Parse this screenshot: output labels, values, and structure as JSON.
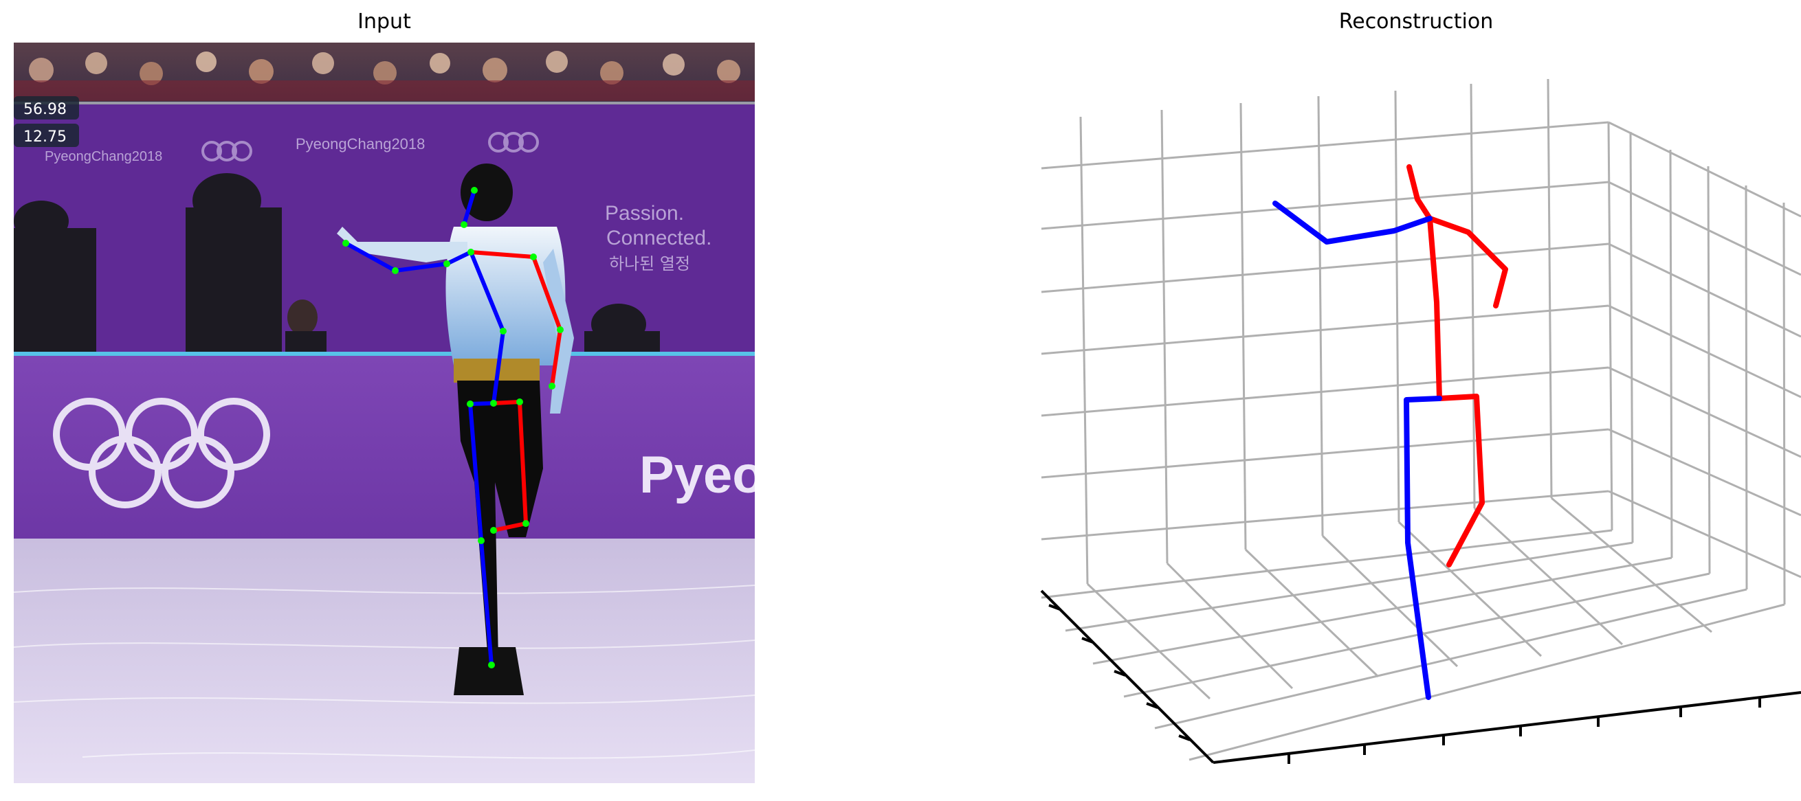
{
  "titles": {
    "input": "Input",
    "reconstruction": "Reconstruction"
  },
  "scoreboard": {
    "line1": "56.98",
    "line2": "12.75"
  },
  "banners": {
    "upper_text_left": "PyeongChang2018",
    "upper_text_mid": "PyeongChang2018",
    "side_text_1": "Passion.",
    "side_text_2": "Connected.",
    "side_text_3": "하나된 열정",
    "board_text": "Pyeo"
  },
  "colors": {
    "left_limb": "#0000ff",
    "right_limb": "#ff0000",
    "joint": "#00ff00",
    "banner_purple": "#6b2fa6",
    "axis_grid": "#b0b0b0"
  }
}
